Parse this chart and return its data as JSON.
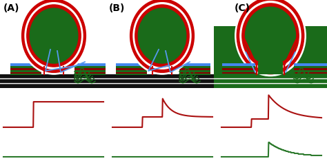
{
  "fig_width": 4.74,
  "fig_height": 2.37,
  "dpi": 100,
  "bg_color": "#ffffff",
  "labels": [
    "(A)",
    "(B)",
    "(C)"
  ],
  "label_fontsize": 10,
  "dark_green": "#1a6b1a",
  "med_green": "#2d8c2d",
  "red": "#cc0000",
  "dark_red": "#8b0000",
  "white": "#ffffff",
  "blue": "#5599ee",
  "black": "#111111",
  "graph_red": "#aa1111",
  "graph_green": "#2d7a2d",
  "membrane_blue": "#4488ee",
  "membrane_dkgreen": "#1a6b1a",
  "membrane_dkred": "#880000"
}
